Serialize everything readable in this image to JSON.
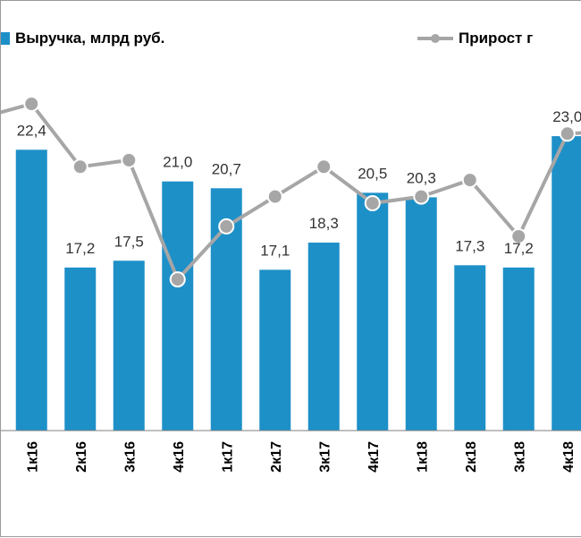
{
  "colors": {
    "bar": "#1E90C8",
    "line": "#A6A6A6",
    "marker_fill": "#A6A6A6",
    "marker_stroke": "#FFFFFF"
  },
  "legend": {
    "bars_label": "Выручка, млрд руб.",
    "line_label": "Прирост г"
  },
  "chart_data": {
    "type": "bar",
    "title": "",
    "xlabel": "",
    "ylabel": "",
    "categories": [
      "1к16",
      "2к16",
      "3к16",
      "4к16",
      "1к17",
      "2к17",
      "3к17",
      "4к17",
      "1к18",
      "2к18",
      "3к18",
      "4к18"
    ],
    "series": [
      {
        "name": "Выручка, млрд руб.",
        "type": "bar",
        "values": [
          22.4,
          17.2,
          17.5,
          21.0,
          20.7,
          17.1,
          18.3,
          20.5,
          20.3,
          17.3,
          17.2,
          23.0
        ],
        "labels": [
          "22,4",
          "17,2",
          "17,5",
          "21,0",
          "20,7",
          "17,1",
          "18,3",
          "20,5",
          "20,3",
          "17,3",
          "17,2",
          "23,0"
        ]
      },
      {
        "name": "Прирост г",
        "type": "line",
        "unit": "relative (secondary axis, not labeled)",
        "values": [
          100,
          81,
          83,
          47,
          63,
          72,
          81,
          70,
          72,
          77,
          60,
          91
        ]
      }
    ],
    "ylim": [
      10,
      25
    ],
    "grid": false,
    "legend_position": "top"
  }
}
